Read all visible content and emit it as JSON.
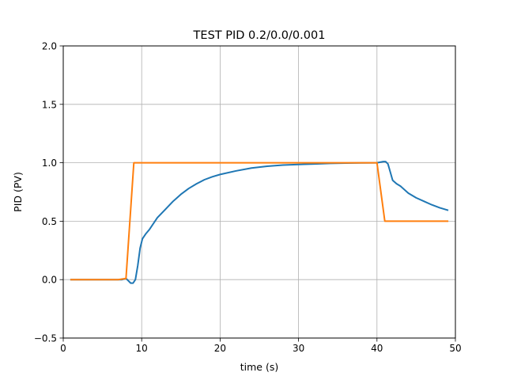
{
  "chart_data": {
    "type": "line",
    "title": "TEST PID 0.2/0.0/0.001",
    "xlabel": "time (s)",
    "ylabel": "PID (PV)",
    "xlim": [
      0,
      50
    ],
    "ylim": [
      -0.5,
      2.0
    ],
    "xticks": [
      0,
      10,
      20,
      30,
      40,
      50
    ],
    "xtick_labels": [
      "0",
      "10",
      "20",
      "30",
      "40",
      "50"
    ],
    "yticks": [
      -0.5,
      0.0,
      0.5,
      1.0,
      1.5,
      2.0
    ],
    "ytick_labels": [
      "−0.5",
      "0.0",
      "0.5",
      "1.0",
      "1.5",
      "2.0"
    ],
    "grid": true,
    "legend": false,
    "series": [
      {
        "color": "#1f77b4",
        "x": [
          1,
          2,
          3,
          4,
          5,
          6,
          7,
          7.5,
          8,
          8.3,
          8.6,
          8.9,
          9.2,
          9.5,
          9.8,
          10.1,
          10.5,
          11,
          11.5,
          12,
          13,
          14,
          15,
          16,
          17,
          18,
          19,
          20,
          22,
          24,
          26,
          28,
          30,
          32,
          34,
          36,
          38,
          40,
          40.4,
          40.8,
          41.1,
          41.4,
          41.7,
          42,
          42.5,
          43,
          44,
          45,
          46,
          47,
          48,
          49
        ],
        "y": [
          0,
          0,
          0,
          0,
          0,
          0,
          0,
          0,
          0.01,
          -0.01,
          -0.03,
          -0.03,
          0.0,
          0.12,
          0.27,
          0.35,
          0.39,
          0.43,
          0.48,
          0.53,
          0.6,
          0.67,
          0.73,
          0.78,
          0.82,
          0.855,
          0.88,
          0.9,
          0.93,
          0.955,
          0.97,
          0.98,
          0.985,
          0.99,
          0.995,
          0.997,
          0.999,
          1.0,
          1.005,
          1.01,
          1.01,
          0.99,
          0.92,
          0.85,
          0.82,
          0.8,
          0.74,
          0.7,
          0.67,
          0.64,
          0.615,
          0.595
        ]
      },
      {
        "color": "#ff7f0e",
        "x": [
          1,
          2,
          3,
          4,
          5,
          6,
          7,
          8,
          9,
          10,
          15,
          20,
          25,
          30,
          35,
          40,
          41,
          42,
          45,
          49
        ],
        "y": [
          0,
          0,
          0,
          0,
          0,
          0,
          0,
          0.01,
          1.0,
          1.0,
          1.0,
          1.0,
          1.0,
          1.0,
          1.0,
          1.0,
          0.5,
          0.5,
          0.5,
          0.5
        ]
      }
    ]
  }
}
